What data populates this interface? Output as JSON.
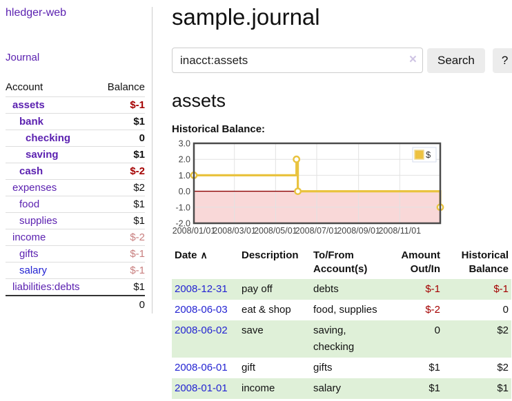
{
  "app": {
    "brand": "hledger-web",
    "nav_journal": "Journal"
  },
  "sidebar": {
    "columns": {
      "account": "Account",
      "balance": "Balance"
    },
    "accounts": [
      {
        "name": "assets",
        "balance": "$-1",
        "level": 1,
        "bold": true,
        "name_color": "purple",
        "balance_color": "negative"
      },
      {
        "name": "bank",
        "balance": "$1",
        "level": 2,
        "bold": true,
        "name_color": "purple",
        "balance_color": "normal"
      },
      {
        "name": "checking",
        "balance": "0",
        "level": 3,
        "bold": true,
        "name_color": "purple",
        "balance_color": "normal"
      },
      {
        "name": "saving",
        "balance": "$1",
        "level": 3,
        "bold": true,
        "name_color": "purple",
        "balance_color": "normal"
      },
      {
        "name": "cash",
        "balance": "$-2",
        "level": 2,
        "bold": true,
        "name_color": "purple",
        "balance_color": "negative"
      },
      {
        "name": "expenses",
        "balance": "$2",
        "level": 1,
        "bold": false,
        "name_color": "purple",
        "balance_color": "normal"
      },
      {
        "name": "food",
        "balance": "$1",
        "level": 2,
        "bold": false,
        "name_color": "purple",
        "balance_color": "normal"
      },
      {
        "name": "supplies",
        "balance": "$1",
        "level": 2,
        "bold": false,
        "name_color": "purple",
        "balance_color": "normal"
      },
      {
        "name": "income",
        "balance": "$-2",
        "level": 1,
        "bold": false,
        "name_color": "purple",
        "balance_color": "muted"
      },
      {
        "name": "gifts",
        "balance": "$-1",
        "level": 2,
        "bold": false,
        "name_color": "purple",
        "balance_color": "muted"
      },
      {
        "name": "salary",
        "balance": "$-1",
        "level": 2,
        "bold": false,
        "name_color": "blue",
        "balance_color": "muted"
      },
      {
        "name": "liabilities:debts",
        "balance": "$1",
        "level": 1,
        "bold": false,
        "name_color": "purple",
        "balance_color": "normal"
      }
    ],
    "total": "0"
  },
  "header": {
    "title": "sample.journal"
  },
  "search": {
    "value": "inacct:assets",
    "clear_icon": "×",
    "button_label": "Search",
    "help_label": "?"
  },
  "account_page": {
    "heading": "assets",
    "chart_label": "Historical Balance:"
  },
  "chart_data": {
    "type": "line",
    "step": true,
    "title": "Historical Balance",
    "legend": [
      {
        "name": "$",
        "color": "#edc240"
      }
    ],
    "legend_position": "top-right",
    "ylim": [
      -2.0,
      3.0
    ],
    "yticks": [
      3.0,
      2.0,
      1.0,
      0.0,
      -1.0,
      -2.0
    ],
    "ytick_labels": [
      "3.0",
      "2.0",
      "1.0",
      "0.0",
      "-1.0",
      "-2.0"
    ],
    "x_range_days": [
      0,
      365
    ],
    "xticks_days": [
      0,
      60,
      121,
      182,
      244,
      305
    ],
    "xtick_labels": [
      "2008/01/01",
      "2008/03/01",
      "2008/05/01",
      "2008/07/01",
      "2008/09/01",
      "2008/11/01"
    ],
    "points": [
      {
        "date": "2008-01-01",
        "day": 0,
        "value": 1.0
      },
      {
        "date": "2008-06-01",
        "day": 152,
        "value": 2.0
      },
      {
        "date": "2008-06-03",
        "day": 154,
        "value": 0.0
      },
      {
        "date": "2008-12-31",
        "day": 365,
        "value": -1.0
      }
    ],
    "grid": true,
    "colors": {
      "line": "#e9c33f",
      "marker_fill": "#ffffff",
      "negative_region_fill": "#f9d8d8",
      "zero_line": "#8b0000",
      "gridline": "#e2e2e2",
      "border": "#4a4a4a",
      "tick_text": "#444444"
    }
  },
  "register": {
    "columns": [
      {
        "label": "Date",
        "sort_arrow": "∧",
        "align": "left"
      },
      {
        "label": "Description",
        "align": "left"
      },
      {
        "label": "To/From Account(s)",
        "align": "left"
      },
      {
        "label": "Amount Out/In",
        "align": "right"
      },
      {
        "label": "Historical Balance",
        "align": "right"
      }
    ],
    "rows": [
      {
        "date": "2008-12-31",
        "description": "pay off",
        "accounts": "debts",
        "amount": "$-1",
        "amount_neg": true,
        "balance": "$-1",
        "balance_neg": true,
        "shade": true
      },
      {
        "date": "2008-06-03",
        "description": "eat & shop",
        "accounts": "food, supplies",
        "amount": "$-2",
        "amount_neg": true,
        "balance": "0",
        "balance_neg": false,
        "shade": false
      },
      {
        "date": "2008-06-02",
        "description": "save",
        "accounts": "saving, checking",
        "amount": "0",
        "amount_neg": false,
        "balance": "$2",
        "balance_neg": false,
        "shade": true
      },
      {
        "date": "2008-06-01",
        "description": "gift",
        "accounts": "gifts",
        "amount": "$1",
        "amount_neg": false,
        "balance": "$2",
        "balance_neg": false,
        "shade": false
      },
      {
        "date": "2008-01-01",
        "description": "income",
        "accounts": "salary",
        "amount": "$1",
        "amount_neg": false,
        "balance": "$1",
        "balance_neg": false,
        "shade": true
      }
    ]
  }
}
